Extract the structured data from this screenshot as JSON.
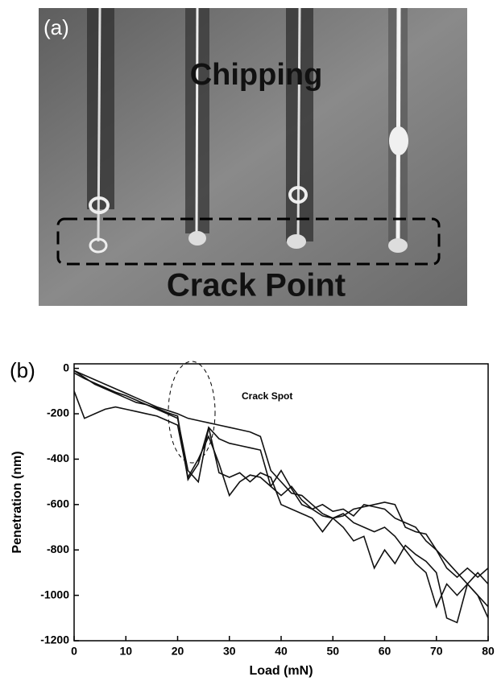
{
  "panel_a": {
    "label": "(a)",
    "annotations": [
      "Chipping",
      "Crack Point"
    ]
  },
  "chart_data": {
    "type": "line",
    "panel_label": "(b)",
    "xlabel": "Load (mN)",
    "ylabel": "Penetration (nm)",
    "annotation": "Crack Spot",
    "x": [
      0,
      2,
      4,
      6,
      8,
      10,
      12,
      14,
      16,
      18,
      20,
      22,
      24,
      26,
      28,
      30,
      32,
      34,
      36,
      38,
      40,
      42,
      44,
      46,
      48,
      50,
      52,
      54,
      56,
      58,
      60,
      62,
      64,
      66,
      68,
      70,
      72,
      74,
      76,
      78,
      80
    ],
    "series": [
      {
        "color": "#111111",
        "values": [
          -100,
          -220,
          -200,
          -180,
          -170,
          -180,
          -190,
          -200,
          -210,
          -230,
          -250,
          -480,
          -400,
          -300,
          -420,
          -560,
          -500,
          -470,
          -480,
          -520,
          -450,
          -530,
          -600,
          -620,
          -650,
          -660,
          -640,
          -680,
          -700,
          -720,
          -700,
          -740,
          -800,
          -860,
          -900,
          -1050,
          -950,
          -1000,
          -950,
          -1000,
          -1050
        ]
      },
      {
        "color": "#111111",
        "values": [
          -10,
          -40,
          -70,
          -90,
          -110,
          -130,
          -150,
          -160,
          -180,
          -200,
          -220,
          -450,
          -500,
          -260,
          -310,
          -330,
          -340,
          -350,
          -360,
          -520,
          -560,
          -520,
          -580,
          -620,
          -600,
          -630,
          -620,
          -650,
          -600,
          -610,
          -620,
          -660,
          -680,
          -700,
          -760,
          -800,
          -880,
          -920,
          -880,
          -920,
          -880
        ]
      },
      {
        "color": "#111111",
        "values": [
          -10,
          -30,
          -50,
          -70,
          -90,
          -110,
          -130,
          -150,
          -170,
          -185,
          -200,
          -220,
          -230,
          -240,
          -250,
          -260,
          -270,
          -280,
          -300,
          -450,
          -500,
          -550,
          -560,
          -600,
          -640,
          -660,
          -650,
          -620,
          -610,
          -600,
          -590,
          -600,
          -700,
          -720,
          -730,
          -800,
          -850,
          -900,
          -950,
          -900,
          -950
        ]
      },
      {
        "color": "#111111",
        "values": [
          -20,
          -45,
          -65,
          -85,
          -105,
          -120,
          -140,
          -160,
          -175,
          -195,
          -210,
          -490,
          -420,
          -260,
          -460,
          -480,
          -460,
          -500,
          -460,
          -480,
          -600,
          -620,
          -640,
          -660,
          -720,
          -660,
          -700,
          -760,
          -740,
          -880,
          -800,
          -860,
          -780,
          -820,
          -850,
          -900,
          -1100,
          -1120,
          -950,
          -1000,
          -1100
        ]
      }
    ],
    "xlim": [
      0,
      80
    ],
    "xticks": [
      0,
      10,
      20,
      30,
      40,
      50,
      60,
      70,
      80
    ],
    "ylim": [
      -1200,
      20
    ],
    "yticks": [
      0,
      -200,
      -400,
      -600,
      -800,
      -1000,
      -1200
    ]
  }
}
